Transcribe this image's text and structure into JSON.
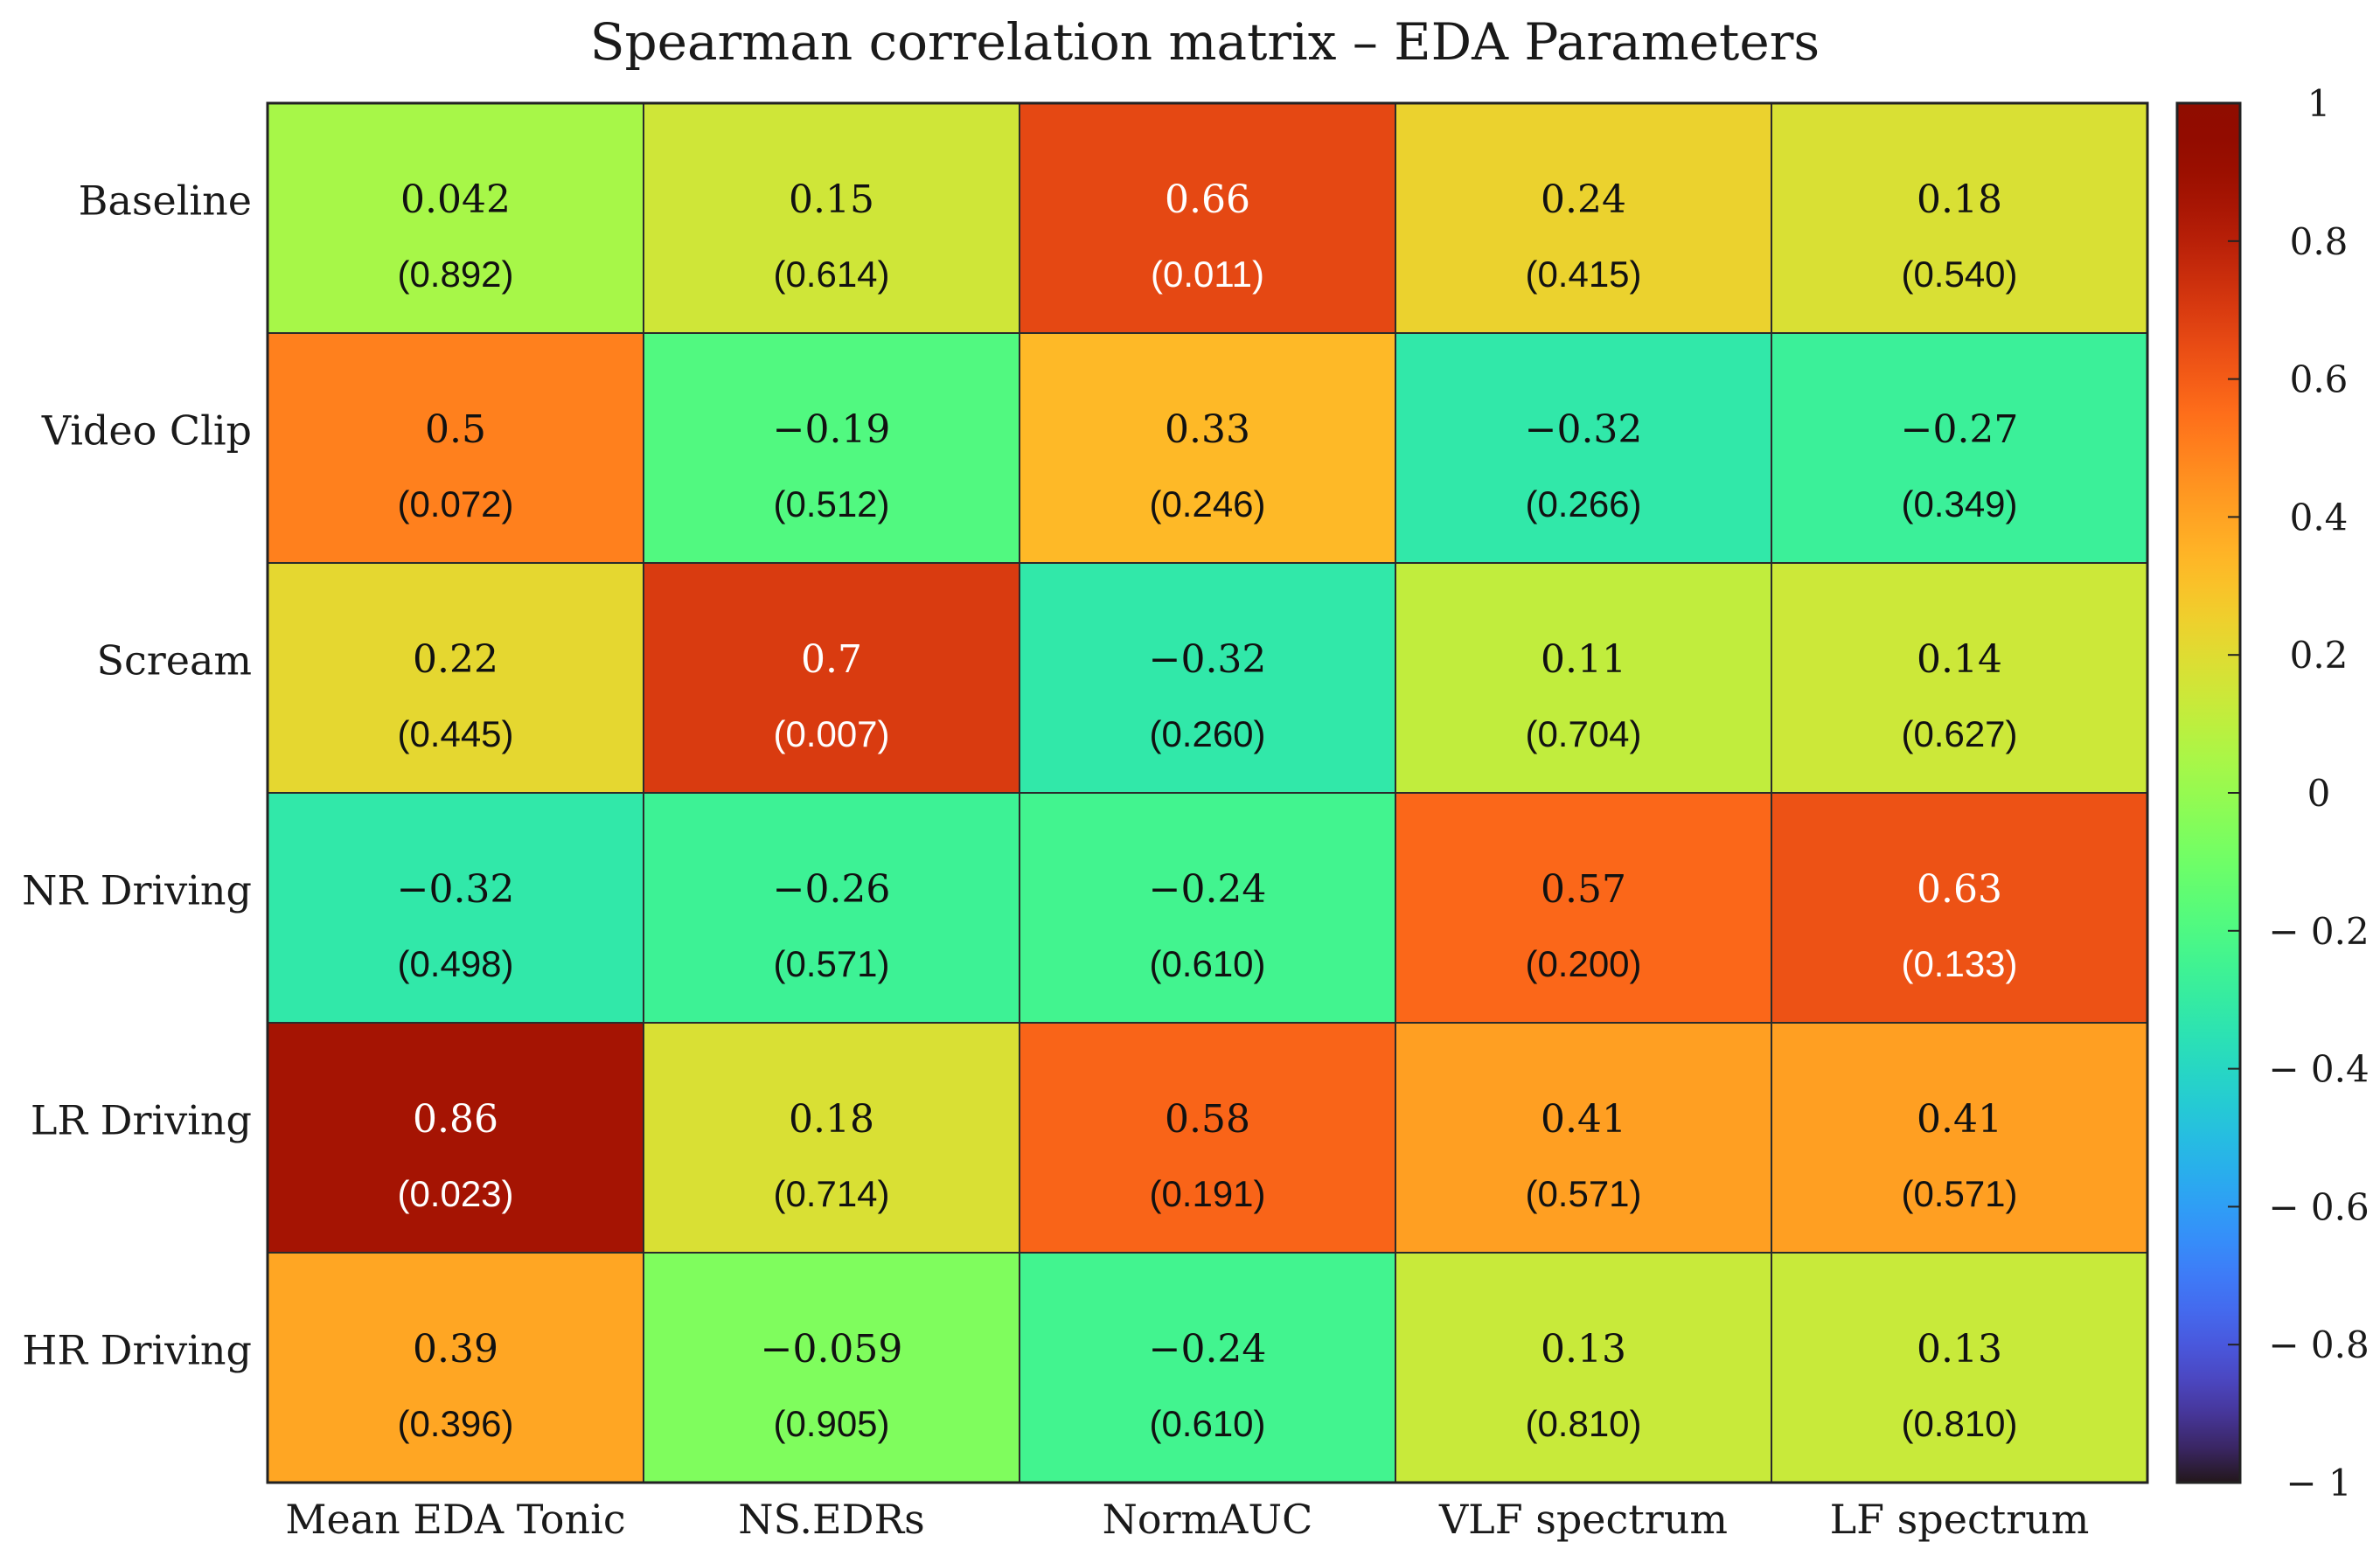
{
  "chart_data": {
    "type": "heatmap",
    "title": "Spearman correlation matrix – EDA Parameters",
    "rows": [
      "Baseline",
      "Video Clip",
      "Scream",
      "NR Driving",
      "LR Driving",
      "HR Driving"
    ],
    "columns": [
      "Mean EDA Tonic",
      "NS.EDRs",
      "NormAUC",
      "VLF spectrum",
      "LF spectrum"
    ],
    "values": [
      [
        0.042,
        0.15,
        0.66,
        0.24,
        0.18
      ],
      [
        0.5,
        -0.19,
        0.33,
        -0.32,
        -0.27
      ],
      [
        0.22,
        0.7,
        -0.32,
        0.11,
        0.14
      ],
      [
        -0.32,
        -0.26,
        -0.24,
        0.57,
        0.63
      ],
      [
        0.86,
        0.18,
        0.58,
        0.41,
        0.41
      ],
      [
        0.39,
        -0.059,
        -0.24,
        0.13,
        0.13
      ]
    ],
    "value_labels": [
      [
        "0.042",
        "0.15",
        "0.66",
        "0.24",
        "0.18"
      ],
      [
        "0.5",
        "−0.19",
        "0.33",
        "−0.32",
        "−0.27"
      ],
      [
        "0.22",
        "0.7",
        "−0.32",
        "0.11",
        "0.14"
      ],
      [
        "−0.32",
        "−0.26",
        "−0.24",
        "0.57",
        "0.63"
      ],
      [
        "0.86",
        "0.18",
        "0.58",
        "0.41",
        "0.41"
      ],
      [
        "0.39",
        "−0.059",
        "−0.24",
        "0.13",
        "0.13"
      ]
    ],
    "p_value_labels": [
      [
        "(0.892)",
        "(0.614)",
        "(0.011)",
        "(0.415)",
        "(0.540)"
      ],
      [
        "(0.072)",
        "(0.512)",
        "(0.246)",
        "(0.266)",
        "(0.349)"
      ],
      [
        "(0.445)",
        "(0.007)",
        "(0.260)",
        "(0.704)",
        "(0.627)"
      ],
      [
        "(0.498)",
        "(0.571)",
        "(0.610)",
        "(0.200)",
        "(0.133)"
      ],
      [
        "(0.023)",
        "(0.714)",
        "(0.191)",
        "(0.571)",
        "(0.571)"
      ],
      [
        "(0.396)",
        "(0.905)",
        "(0.610)",
        "(0.810)",
        "(0.810)"
      ]
    ],
    "colorbar": {
      "range": [
        -1,
        1
      ],
      "ticks": [
        1,
        0.8,
        0.6,
        0.4,
        0.2,
        0,
        -0.2,
        -0.4,
        -0.6,
        -0.8,
        -1
      ],
      "tick_labels": [
        "1",
        "0.8",
        "0.6",
        "0.4",
        "0.2",
        "0",
        "− 0.2",
        "− 0.4",
        "− 0.6",
        "− 0.8",
        "− 1"
      ],
      "colormap": "turbo"
    }
  }
}
